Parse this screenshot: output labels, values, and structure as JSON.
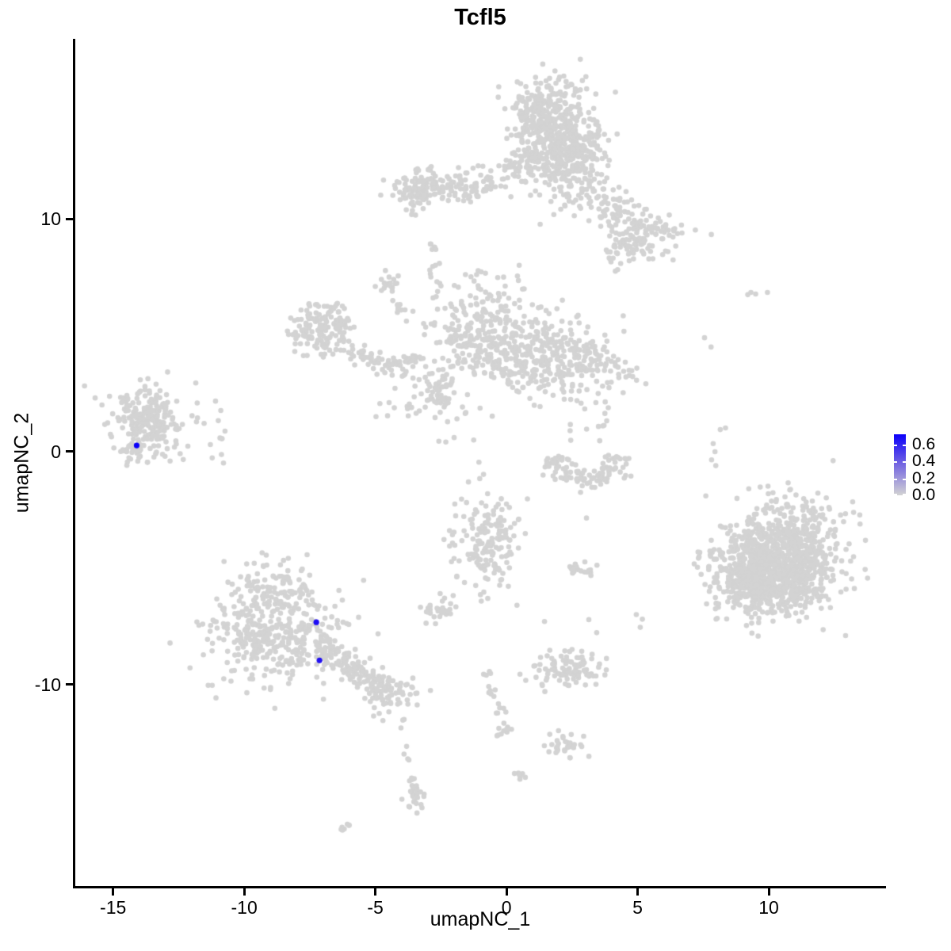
{
  "title": "Tcfl5",
  "axes": {
    "x": {
      "label": "umapNC_1",
      "tick_labels": [
        "-15",
        "-10",
        "-5",
        "0",
        "5",
        "10"
      ],
      "tick_values": [
        -15,
        -10,
        -5,
        0,
        5,
        10
      ]
    },
    "y": {
      "label": "umapNC_2",
      "tick_labels": [
        "10",
        "0",
        "-10"
      ],
      "tick_values": [
        10,
        0,
        -10
      ]
    }
  },
  "legend": {
    "tick_labels": [
      "0.6",
      "0.4",
      "0.2",
      "0.0"
    ],
    "tick_values": [
      0.6,
      0.4,
      0.2,
      0.0
    ],
    "max_value": 0.72,
    "min_value": 0.0,
    "low_color": "#d3d3d3",
    "mid_color": "#7668e1",
    "high_color": "#0b00fa"
  },
  "style": {
    "point_color": "#d3d3d3",
    "point_radius": 3.3,
    "highlight_radius": 3.6,
    "axis_color": "#000000",
    "background": "#ffffff",
    "seed": 42
  },
  "chart_data": {
    "type": "scatter",
    "title": "Tcfl5",
    "xlabel": "umapNC_1",
    "ylabel": "umapNC_2",
    "xlim": [
      -16.44,
      14.44
    ],
    "ylim": [
      -18.67,
      17.75
    ],
    "grid": false,
    "legend_position": "right",
    "colorbar": {
      "range": [
        0.0,
        0.72
      ],
      "label_values": [
        0.6,
        0.4,
        0.2,
        0.0
      ],
      "low": "#d3d3d3",
      "high": "#0b00fa"
    },
    "clusters": [
      {
        "type": "gauss",
        "c": [
          1.85,
          13.55
        ],
        "s": [
          0.85,
          1.15
        ],
        "n": 480
      },
      {
        "type": "gauss",
        "c": [
          0.95,
          14.6
        ],
        "s": [
          0.5,
          0.55
        ],
        "n": 90
      },
      {
        "type": "gauss",
        "c": [
          2.6,
          12.6
        ],
        "s": [
          0.6,
          0.6
        ],
        "n": 90
      },
      {
        "type": "gauss",
        "c": [
          -2.3,
          11.4
        ],
        "s": [
          1.05,
          0.42
        ],
        "n": 140
      },
      {
        "type": "gauss",
        "c": [
          -3.5,
          11.15
        ],
        "s": [
          0.38,
          0.4
        ],
        "n": 40
      },
      {
        "type": "line",
        "from": [
          -0.9,
          11.6
        ],
        "to": [
          0.9,
          12.6
        ],
        "jitter": 0.3,
        "n": 40
      },
      {
        "type": "line",
        "from": [
          2.2,
          11.9
        ],
        "to": [
          5.3,
          9.5
        ],
        "jitter": 0.55,
        "n": 120
      },
      {
        "type": "gauss",
        "c": [
          5.45,
          9.25
        ],
        "s": [
          0.8,
          0.6
        ],
        "n": 80
      },
      {
        "type": "gauss",
        "c": [
          4.4,
          8.75
        ],
        "s": [
          0.45,
          0.4
        ],
        "n": 40
      },
      {
        "type": "line",
        "from": [
          -2.95,
          8.95
        ],
        "to": [
          -2.7,
          8.65
        ],
        "jitter": 0.07,
        "n": 6
      },
      {
        "type": "line",
        "from": [
          -2.85,
          8.1
        ],
        "to": [
          -2.55,
          6.3
        ],
        "jitter": 0.1,
        "n": 8
      },
      {
        "type": "ring",
        "c": [
          -7.05,
          5.35
        ],
        "r": 0.72,
        "w": 0.34,
        "n": 150
      },
      {
        "type": "line",
        "from": [
          -6.25,
          4.4
        ],
        "to": [
          -4.5,
          3.75
        ],
        "jitter": 0.17,
        "n": 40
      },
      {
        "type": "line",
        "from": [
          -4.5,
          3.75
        ],
        "to": [
          -3.35,
          3.95
        ],
        "jitter": 0.15,
        "n": 28
      },
      {
        "type": "gauss",
        "c": [
          -4.6,
          7.3
        ],
        "s": [
          0.27,
          0.32
        ],
        "n": 18
      },
      {
        "type": "line",
        "from": [
          -4.25,
          6.7
        ],
        "to": [
          -3.9,
          5.5
        ],
        "jitter": 0.1,
        "n": 10
      },
      {
        "type": "gauss",
        "c": [
          -0.9,
          4.95
        ],
        "s": [
          0.95,
          1.2
        ],
        "n": 300
      },
      {
        "type": "gauss",
        "c": [
          1.6,
          4.1
        ],
        "s": [
          1.0,
          0.85
        ],
        "n": 270
      },
      {
        "type": "line",
        "from": [
          2.7,
          4.3
        ],
        "to": [
          4.7,
          3.3
        ],
        "jitter": 0.45,
        "n": 60
      },
      {
        "type": "rect",
        "min": [
          2.3,
          0.3
        ],
        "max": [
          3.9,
          2.9
        ],
        "n": 16
      },
      {
        "type": "arc",
        "c": [
          3.05,
          0.15
        ],
        "r": 1.35,
        "a1": 195,
        "a2": 345,
        "w": 0.3,
        "n": 105
      },
      {
        "type": "gauss",
        "c": [
          -2.45,
          2.75
        ],
        "s": [
          0.32,
          0.34
        ],
        "n": 38
      },
      {
        "type": "rect",
        "min": [
          -5.1,
          1.3
        ],
        "max": [
          -2.7,
          3.5
        ],
        "n": 30
      },
      {
        "type": "rect",
        "min": [
          -2.6,
          0.3
        ],
        "max": [
          -1.5,
          2.3
        ],
        "n": 9
      },
      {
        "type": "gauss",
        "c": [
          -13.65,
          1.35
        ],
        "s": [
          0.75,
          0.75
        ],
        "n": 230
      },
      {
        "type": "gauss",
        "c": [
          -14.2,
          -0.05
        ],
        "s": [
          0.3,
          0.3
        ],
        "n": 22
      },
      {
        "type": "rect",
        "min": [
          -12.4,
          -0.6
        ],
        "max": [
          -10.7,
          2.6
        ],
        "n": 13
      },
      {
        "type": "gauss",
        "c": [
          -8.8,
          -6.0
        ],
        "s": [
          0.8,
          0.7
        ],
        "n": 120
      },
      {
        "type": "gauss",
        "c": [
          -8.9,
          -8.0
        ],
        "s": [
          1.3,
          1.0
        ],
        "n": 360
      },
      {
        "type": "line",
        "from": [
          -7.2,
          -8.3
        ],
        "to": [
          -4.7,
          -10.25
        ],
        "jitter": 0.3,
        "n": 140
      },
      {
        "type": "gauss",
        "c": [
          -4.35,
          -10.4
        ],
        "s": [
          0.5,
          0.35
        ],
        "n": 60
      },
      {
        "type": "line",
        "from": [
          -4.0,
          -11.3
        ],
        "to": [
          -3.75,
          -13.3
        ],
        "jitter": 0.07,
        "n": 7
      },
      {
        "type": "line",
        "from": [
          -3.7,
          -13.8
        ],
        "to": [
          -3.45,
          -14.7
        ],
        "jitter": 0.1,
        "n": 12
      },
      {
        "type": "gauss",
        "c": [
          -3.45,
          -15.0
        ],
        "s": [
          0.22,
          0.25
        ],
        "n": 16
      },
      {
        "type": "line",
        "from": [
          -6.3,
          -16.3
        ],
        "to": [
          -5.95,
          -15.95
        ],
        "jitter": 0.06,
        "n": 7
      },
      {
        "type": "gauss",
        "c": [
          -0.7,
          -3.9
        ],
        "s": [
          0.68,
          1.0
        ],
        "n": 170
      },
      {
        "type": "gauss",
        "c": [
          -2.65,
          -6.8
        ],
        "s": [
          0.3,
          0.27
        ],
        "n": 32
      },
      {
        "type": "line",
        "from": [
          -0.9,
          -9.2
        ],
        "to": [
          -0.15,
          -11.5
        ],
        "jitter": 0.12,
        "n": 16
      },
      {
        "type": "gauss",
        "c": [
          -0.12,
          -11.9
        ],
        "s": [
          0.17,
          0.3
        ],
        "n": 12
      },
      {
        "type": "gauss",
        "c": [
          2.3,
          -9.35
        ],
        "s": [
          0.72,
          0.4
        ],
        "n": 95
      },
      {
        "type": "line",
        "from": [
          2.4,
          -4.95
        ],
        "to": [
          3.25,
          -5.15
        ],
        "jitter": 0.1,
        "n": 20
      },
      {
        "type": "gauss",
        "c": [
          2.35,
          -12.6
        ],
        "s": [
          0.38,
          0.28
        ],
        "n": 32
      },
      {
        "type": "line",
        "from": [
          0.35,
          -13.75
        ],
        "to": [
          0.62,
          -14.05
        ],
        "jitter": 0.08,
        "n": 7
      },
      {
        "type": "gauss",
        "c": [
          10.55,
          -4.35
        ],
        "s": [
          1.1,
          1.15
        ],
        "n": 720
      },
      {
        "type": "gauss",
        "c": [
          9.35,
          -5.35
        ],
        "s": [
          0.8,
          0.85
        ],
        "n": 400
      },
      {
        "type": "gauss",
        "c": [
          11.3,
          -5.6
        ],
        "s": [
          0.6,
          0.7
        ],
        "n": 150
      },
      {
        "type": "pts",
        "pts": [
          [
            7.55,
            4.9
          ],
          [
            7.8,
            4.5
          ],
          [
            9.2,
            6.75
          ],
          [
            9.32,
            6.85
          ],
          [
            9.5,
            6.78
          ],
          [
            9.95,
            6.85
          ],
          [
            8.15,
            0.95
          ],
          [
            8.35,
            1.02
          ],
          [
            7.88,
            0.35
          ],
          [
            7.95,
            0.0
          ],
          [
            7.82,
            -0.35
          ],
          [
            7.98,
            -0.6
          ],
          [
            7.6,
            -1.9
          ],
          [
            2.5,
            -8.5
          ],
          [
            1.65,
            -12.15
          ],
          [
            3.45,
            -4.88
          ],
          [
            3.14,
            -7.22
          ],
          [
            3.44,
            -7.78
          ],
          [
            4.95,
            -7.0
          ],
          [
            5.1,
            -7.55
          ],
          [
            5.18,
            -7.2
          ],
          [
            3.05,
            -2.85
          ],
          [
            -1.25,
            0.5
          ],
          [
            -1.05,
            -0.45
          ],
          [
            -1.45,
            -1.3
          ],
          [
            -0.95,
            -2.2
          ],
          [
            1.45,
            -7.3
          ],
          [
            0.4,
            -6.6
          ]
        ]
      }
    ],
    "highlighted_cells": [
      {
        "x": -14.1,
        "y": 0.27,
        "value": 0.72,
        "color": "#0b00fa"
      },
      {
        "x": -7.25,
        "y": -7.33,
        "value": 0.65,
        "color": "#1c0bf4"
      },
      {
        "x": -7.13,
        "y": -8.97,
        "value": 0.62,
        "color": "#2110f0"
      }
    ]
  }
}
